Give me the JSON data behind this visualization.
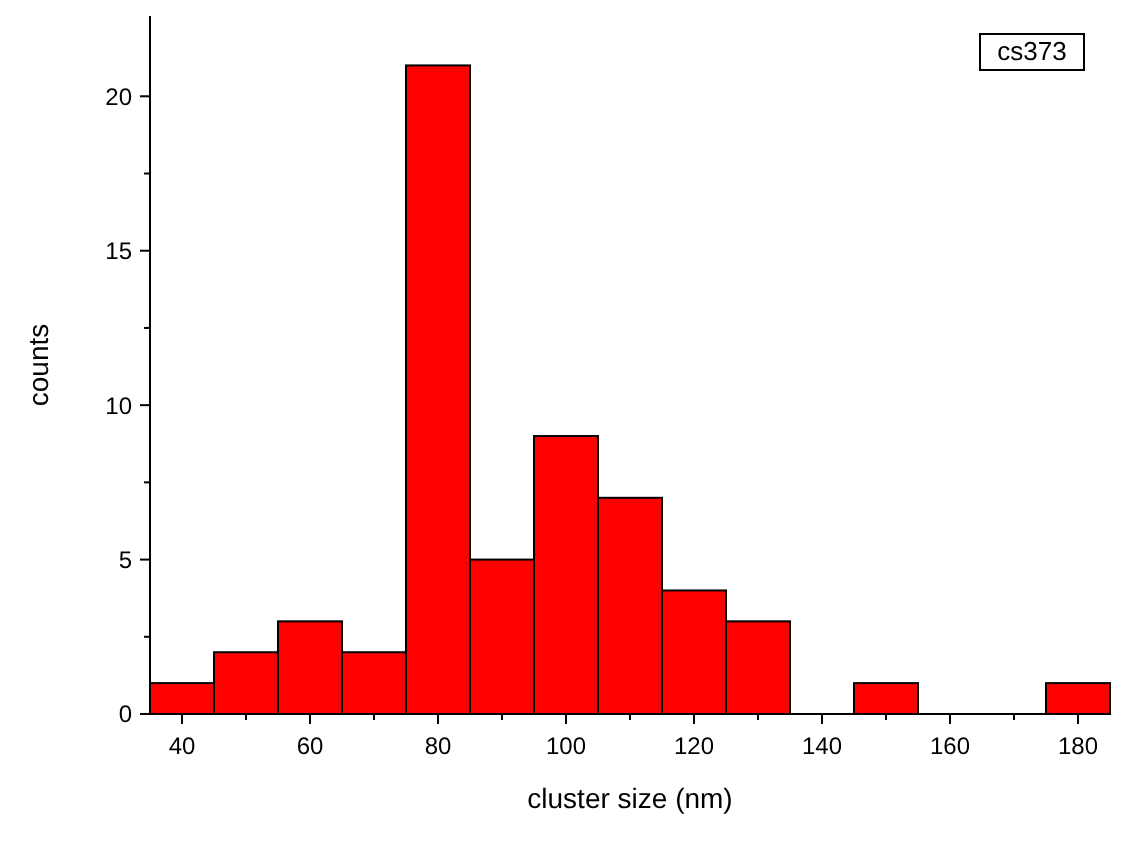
{
  "chart_data": {
    "type": "histogram",
    "xlabel": "cluster size (nm)",
    "ylabel": "counts",
    "annotations": [
      "cs373"
    ],
    "bins": [
      35,
      45,
      55,
      65,
      75,
      85,
      95,
      105,
      115,
      125,
      135,
      145,
      155,
      165,
      175,
      185
    ],
    "values": [
      1,
      2,
      3,
      2,
      21,
      5,
      9,
      7,
      4,
      3,
      0,
      1,
      0,
      0,
      1
    ],
    "color": "#ff0000",
    "xlim": [
      35,
      185
    ],
    "xticks": [
      40,
      {
        "value": 50,
        "label": null
      },
      60,
      {
        "value": 70,
        "label": null
      },
      80,
      {
        "value": 90,
        "label": null
      },
      100,
      {
        "value": 110,
        "label": null
      },
      120,
      {
        "value": 130,
        "label": null
      },
      140,
      {
        "value": 150,
        "label": null
      },
      160,
      {
        "value": 170,
        "label": null
      },
      180
    ],
    "ylim": [
      0,
      22.6
    ],
    "yticks": [
      0,
      {
        "value": 2.5,
        "label": null
      },
      5,
      {
        "value": 7.5,
        "label": null
      },
      10,
      {
        "value": 12.5,
        "label": null
      },
      15,
      {
        "value": 17.5,
        "label": null
      },
      20
    ],
    "grid": false
  }
}
